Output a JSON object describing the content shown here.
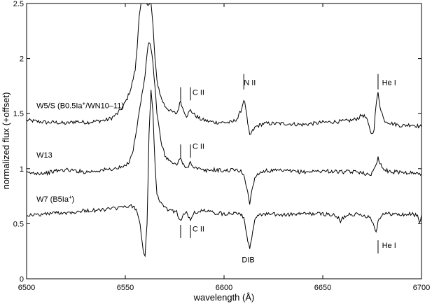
{
  "chart_data": {
    "type": "line",
    "xlabel": "wavelength (Å)",
    "ylabel": "normalized flux (+offset)",
    "xlim": [
      6500,
      6700
    ],
    "ylim": [
      0,
      2.5
    ],
    "xticks": [
      6500,
      6550,
      6600,
      6650,
      6700
    ],
    "yticks": [
      0,
      0.5,
      1,
      1.5,
      2,
      2.5
    ],
    "xtick_labels": [
      "6500",
      "6550",
      "6600",
      "6650",
      "6700"
    ],
    "ytick_labels": [
      "0",
      "0.5",
      "1",
      "1.5",
      "2",
      "2.5"
    ],
    "grid": false,
    "legend": "none",
    "series": [
      {
        "name": "W5/S (B0.5Ia+/WN10–11)",
        "label_main": "W5/S (B0.5Ia",
        "label_sup": "+",
        "label_tail": "/WN10–11)",
        "label_x": 6505,
        "label_y": 1.55,
        "points": [
          [
            6500,
            1.44
          ],
          [
            6505,
            1.43
          ],
          [
            6510,
            1.42
          ],
          [
            6515,
            1.42
          ],
          [
            6520,
            1.41
          ],
          [
            6525,
            1.43
          ],
          [
            6530,
            1.42
          ],
          [
            6535,
            1.43
          ],
          [
            6540,
            1.44
          ],
          [
            6543,
            1.46
          ],
          [
            6546,
            1.5
          ],
          [
            6549,
            1.57
          ],
          [
            6551,
            1.64
          ],
          [
            6553,
            1.74
          ],
          [
            6555,
            1.9
          ],
          [
            6556,
            2.1
          ],
          [
            6557,
            2.4
          ],
          [
            6558,
            2.5
          ],
          [
            6563,
            2.5
          ],
          [
            6564,
            2.3
          ],
          [
            6565,
            2.0
          ],
          [
            6566,
            1.8
          ],
          [
            6568,
            1.65
          ],
          [
            6570,
            1.57
          ],
          [
            6573,
            1.52
          ],
          [
            6576,
            1.5
          ],
          [
            6577,
            1.55
          ],
          [
            6578,
            1.62
          ],
          [
            6579,
            1.55
          ],
          [
            6581,
            1.48
          ],
          [
            6583,
            1.53
          ],
          [
            6585,
            1.49
          ],
          [
            6588,
            1.45
          ],
          [
            6592,
            1.43
          ],
          [
            6596,
            1.42
          ],
          [
            6600,
            1.42
          ],
          [
            6604,
            1.42
          ],
          [
            6607,
            1.46
          ],
          [
            6609,
            1.55
          ],
          [
            6610,
            1.63
          ],
          [
            6611,
            1.55
          ],
          [
            6612,
            1.4
          ],
          [
            6613,
            1.3
          ],
          [
            6614,
            1.33
          ],
          [
            6616,
            1.38
          ],
          [
            6620,
            1.41
          ],
          [
            6630,
            1.41
          ],
          [
            6640,
            1.4
          ],
          [
            6650,
            1.42
          ],
          [
            6660,
            1.43
          ],
          [
            6665,
            1.44
          ],
          [
            6668,
            1.46
          ],
          [
            6670,
            1.49
          ],
          [
            6672,
            1.46
          ],
          [
            6674,
            1.35
          ],
          [
            6675,
            1.31
          ],
          [
            6676,
            1.37
          ],
          [
            6677,
            1.58
          ],
          [
            6678,
            1.69
          ],
          [
            6679,
            1.57
          ],
          [
            6681,
            1.44
          ],
          [
            6685,
            1.41
          ],
          [
            6690,
            1.39
          ],
          [
            6695,
            1.4
          ],
          [
            6700,
            1.38
          ]
        ]
      },
      {
        "name": "W13",
        "label_main": "W13",
        "label_sup": "",
        "label_tail": "",
        "label_x": 6505,
        "label_y": 1.1,
        "points": [
          [
            6500,
            0.96
          ],
          [
            6505,
            0.96
          ],
          [
            6510,
            0.96
          ],
          [
            6515,
            0.98
          ],
          [
            6520,
            0.99
          ],
          [
            6525,
            0.98
          ],
          [
            6530,
            0.97
          ],
          [
            6535,
            0.98
          ],
          [
            6540,
            0.99
          ],
          [
            6545,
            1.0
          ],
          [
            6550,
            1.02
          ],
          [
            6552,
            1.07
          ],
          [
            6554,
            1.17
          ],
          [
            6556,
            1.4
          ],
          [
            6558,
            1.62
          ],
          [
            6560,
            1.85
          ],
          [
            6561,
            2.05
          ],
          [
            6562,
            2.15
          ],
          [
            6563,
            2.1
          ],
          [
            6564,
            1.95
          ],
          [
            6565,
            1.75
          ],
          [
            6566,
            1.5
          ],
          [
            6568,
            1.25
          ],
          [
            6570,
            1.12
          ],
          [
            6573,
            1.06
          ],
          [
            6576,
            1.03
          ],
          [
            6577,
            1.08
          ],
          [
            6578,
            1.1
          ],
          [
            6579,
            1.04
          ],
          [
            6581,
            1.0
          ],
          [
            6583,
            1.06
          ],
          [
            6585,
            1.01
          ],
          [
            6590,
            0.98
          ],
          [
            6595,
            0.99
          ],
          [
            6600,
            0.98
          ],
          [
            6605,
            0.99
          ],
          [
            6608,
            0.98
          ],
          [
            6610,
            0.95
          ],
          [
            6612,
            0.78
          ],
          [
            6613,
            0.68
          ],
          [
            6614,
            0.8
          ],
          [
            6616,
            0.94
          ],
          [
            6620,
            0.98
          ],
          [
            6630,
            0.98
          ],
          [
            6640,
            0.97
          ],
          [
            6650,
            0.98
          ],
          [
            6660,
            0.97
          ],
          [
            6670,
            0.97
          ],
          [
            6672,
            0.95
          ],
          [
            6674,
            0.93
          ],
          [
            6675,
            0.97
          ],
          [
            6677,
            1.05
          ],
          [
            6678,
            1.1
          ],
          [
            6679,
            1.05
          ],
          [
            6681,
            0.99
          ],
          [
            6685,
            0.97
          ],
          [
            6690,
            0.97
          ],
          [
            6695,
            0.96
          ],
          [
            6700,
            0.95
          ]
        ]
      },
      {
        "name": "W7 (B5Ia+)",
        "label_main": "W7 (B5Ia",
        "label_sup": "+",
        "label_tail": ")",
        "label_x": 6505,
        "label_y": 0.7,
        "points": [
          [
            6500,
            0.58
          ],
          [
            6505,
            0.58
          ],
          [
            6510,
            0.59
          ],
          [
            6515,
            0.6
          ],
          [
            6520,
            0.6
          ],
          [
            6525,
            0.61
          ],
          [
            6530,
            0.62
          ],
          [
            6535,
            0.62
          ],
          [
            6540,
            0.63
          ],
          [
            6545,
            0.64
          ],
          [
            6550,
            0.65
          ],
          [
            6553,
            0.66
          ],
          [
            6555,
            0.64
          ],
          [
            6557,
            0.55
          ],
          [
            6558,
            0.42
          ],
          [
            6559,
            0.27
          ],
          [
            6560,
            0.2
          ],
          [
            6561,
            0.5
          ],
          [
            6562,
            1.3
          ],
          [
            6563,
            1.73
          ],
          [
            6564,
            1.5
          ],
          [
            6565,
            1.05
          ],
          [
            6566,
            0.78
          ],
          [
            6568,
            0.68
          ],
          [
            6570,
            0.64
          ],
          [
            6573,
            0.62
          ],
          [
            6576,
            0.61
          ],
          [
            6577,
            0.56
          ],
          [
            6578,
            0.52
          ],
          [
            6579,
            0.58
          ],
          [
            6581,
            0.6
          ],
          [
            6583,
            0.53
          ],
          [
            6585,
            0.6
          ],
          [
            6590,
            0.62
          ],
          [
            6595,
            0.6
          ],
          [
            6600,
            0.59
          ],
          [
            6605,
            0.6
          ],
          [
            6608,
            0.6
          ],
          [
            6610,
            0.56
          ],
          [
            6612,
            0.35
          ],
          [
            6613,
            0.26
          ],
          [
            6614,
            0.38
          ],
          [
            6616,
            0.56
          ],
          [
            6620,
            0.59
          ],
          [
            6630,
            0.58
          ],
          [
            6640,
            0.59
          ],
          [
            6650,
            0.59
          ],
          [
            6655,
            0.58
          ],
          [
            6658,
            0.55
          ],
          [
            6659,
            0.51
          ],
          [
            6660,
            0.55
          ],
          [
            6663,
            0.59
          ],
          [
            6670,
            0.58
          ],
          [
            6674,
            0.56
          ],
          [
            6676,
            0.48
          ],
          [
            6677,
            0.43
          ],
          [
            6678,
            0.52
          ],
          [
            6680,
            0.59
          ],
          [
            6685,
            0.59
          ],
          [
            6690,
            0.58
          ],
          [
            6695,
            0.59
          ],
          [
            6698,
            0.57
          ],
          [
            6699,
            0.5
          ],
          [
            6700,
            0.58
          ]
        ]
      }
    ],
    "annotations": [
      {
        "text": "C II",
        "x": 6584,
        "y": 1.67
      },
      {
        "text": "N II",
        "x": 6610,
        "y": 1.76
      },
      {
        "text": "He I",
        "x": 6680,
        "y": 1.76
      },
      {
        "text": "C II",
        "x": 6584,
        "y": 1.18
      },
      {
        "text": "C II",
        "x": 6584,
        "y": 0.43
      },
      {
        "text": "DIB",
        "x": 6609,
        "y": 0.15
      },
      {
        "text": "He I",
        "x": 6680,
        "y": 0.28
      }
    ],
    "marker_lines": [
      {
        "x": 6578,
        "y0": 1.62,
        "y1": 1.74
      },
      {
        "x": 6583,
        "y0": 1.62,
        "y1": 1.74
      },
      {
        "x": 6610,
        "y0": 1.72,
        "y1": 1.86
      },
      {
        "x": 6678,
        "y0": 1.72,
        "y1": 1.86
      },
      {
        "x": 6578,
        "y0": 1.1,
        "y1": 1.22
      },
      {
        "x": 6583,
        "y0": 1.1,
        "y1": 1.22
      },
      {
        "x": 6578,
        "y0": 0.37,
        "y1": 0.49
      },
      {
        "x": 6583,
        "y0": 0.37,
        "y1": 0.49
      },
      {
        "x": 6678,
        "y0": 0.23,
        "y1": 0.35
      }
    ]
  }
}
